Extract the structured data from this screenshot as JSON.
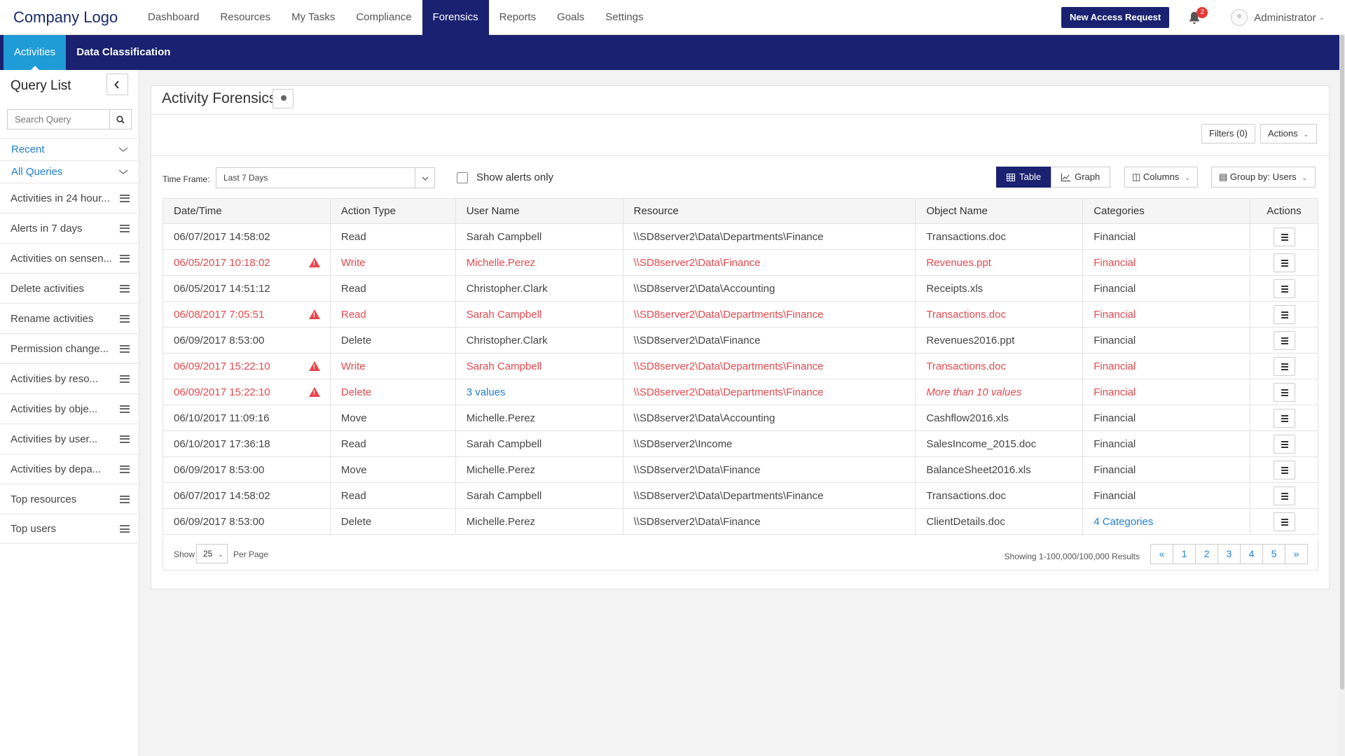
{
  "app": {
    "logo": "Company Logo",
    "nav": [
      "Dashboard",
      "Resources",
      "My Tasks",
      "Compliance",
      "Forensics",
      "Reports",
      "Goals",
      "Settings"
    ],
    "active_nav": "Forensics",
    "new_request": "New Access Request",
    "notifications": "2",
    "user": "Administrator"
  },
  "subnav": [
    "Activities",
    "Data Classification"
  ],
  "sidebar": {
    "title": "Query List",
    "search_placeholder": "Search Query",
    "groups": [
      "Recent",
      "All Queries"
    ],
    "items": [
      "Activities in 24 hour...",
      "Alerts in 7 days",
      "Activities on sensen...",
      "Delete activities",
      "Rename activities",
      "Permission change...",
      "Activities by reso...",
      "Activities by obje...",
      "Activities by user...",
      "Activities by depa...",
      "Top resources",
      "Top users"
    ]
  },
  "panel": {
    "title": "Activity Forensics",
    "filters": "Filters (0)",
    "actions": "Actions",
    "timeframe_label": "Time Frame:",
    "timeframe_value": "Last 7 Days",
    "alerts_only": "Show alerts only",
    "view_table": "Table",
    "view_graph": "Graph",
    "columns": "Columns",
    "group_by": "Group by: Users"
  },
  "table": {
    "columns": [
      "Date/Time",
      "Action Type",
      "User Name",
      "Resource",
      "Object Name",
      "Categories",
      "Actions"
    ],
    "rows": [
      {
        "dt": "06/07/2017 14:58:02",
        "action": "Read",
        "user": "Sarah Campbell",
        "resource": "\\\\SD8server2\\Data\\Departments\\Finance",
        "object": "Transactions.doc",
        "cat": "Financial",
        "alert": false
      },
      {
        "dt": "06/05/2017 10:18:02",
        "action": "Write",
        "user": "Michelle.Perez",
        "resource": "\\\\SD8server2\\Data\\Finance",
        "object": "Revenues.ppt",
        "cat": "Financial",
        "alert": true
      },
      {
        "dt": "06/05/2017 14:51:12",
        "action": "Read",
        "user": "Christopher.Clark",
        "resource": "\\\\SD8server2\\Data\\Accounting",
        "object": "Receipts.xls",
        "cat": "Financial",
        "alert": false
      },
      {
        "dt": "06/08/2017 7:05:51",
        "action": "Read",
        "user": "Sarah Campbell",
        "resource": "\\\\SD8server2\\Data\\Departments\\Finance",
        "object": "Transactions.doc",
        "cat": "Financial",
        "alert": true
      },
      {
        "dt": "06/09/2017 8:53:00",
        "action": "Delete",
        "user": "Christopher.Clark",
        "resource": "\\\\SD8server2\\Data\\Finance",
        "object": "Revenues2016.ppt",
        "cat": "Financial",
        "alert": false
      },
      {
        "dt": "06/09/2017 15:22:10",
        "action": "Write",
        "user": "Sarah Campbell",
        "resource": "\\\\SD8server2\\Data\\Departments\\Finance",
        "object": "Transactions.doc",
        "cat": "Financial",
        "alert": true
      },
      {
        "dt": "06/09/2017 15:22:10",
        "action": "Delete",
        "user": "3 values",
        "resource": "\\\\SD8server2\\Data\\Departments\\Finance",
        "object": "More than 10 values",
        "cat": "Financial",
        "alert": true
      },
      {
        "dt": "06/10/2017 11:09:16",
        "action": "Move",
        "user": "Michelle.Perez",
        "resource": "\\\\SD8server2\\Data\\Accounting",
        "object": "Cashflow2016.xls",
        "cat": "Financial",
        "alert": false
      },
      {
        "dt": "06/10/2017 17:36:18",
        "action": "Read",
        "user": "Sarah Campbell",
        "resource": "\\\\SD8server2\\Income",
        "object": "SalesIncome_2015.doc",
        "cat": "Financial",
        "alert": false
      },
      {
        "dt": "06/09/2017 8:53:00",
        "action": "Move",
        "user": "Michelle.Perez",
        "resource": "\\\\SD8server2\\Data\\Finance",
        "object": "BalanceSheet2016.xls",
        "cat": "Financial",
        "alert": false
      },
      {
        "dt": "06/07/2017 14:58:02",
        "action": "Read",
        "user": "Sarah Campbell",
        "resource": "\\\\SD8server2\\Data\\Departments\\Finance",
        "object": "Transactions.doc",
        "cat": "Financial",
        "alert": false
      },
      {
        "dt": "06/09/2017 8:53:00",
        "action": "Delete",
        "user": "Michelle.Perez",
        "resource": "\\\\SD8server2\\Data\\Finance",
        "object": "ClientDetails.doc",
        "cat": "4 Categories",
        "alert": false
      }
    ]
  },
  "pager": {
    "show": "Show",
    "per_value": "25",
    "per_page": "Per Page",
    "showing": "Showing 1-100,000/100,000 Results",
    "pages": [
      "«",
      "1",
      "2",
      "3",
      "4",
      "5",
      "»"
    ]
  },
  "colors": {
    "navy": "#1a2170",
    "accent": "#1f9bd7",
    "alert": "#e5484d",
    "link": "#1f7fcf"
  }
}
